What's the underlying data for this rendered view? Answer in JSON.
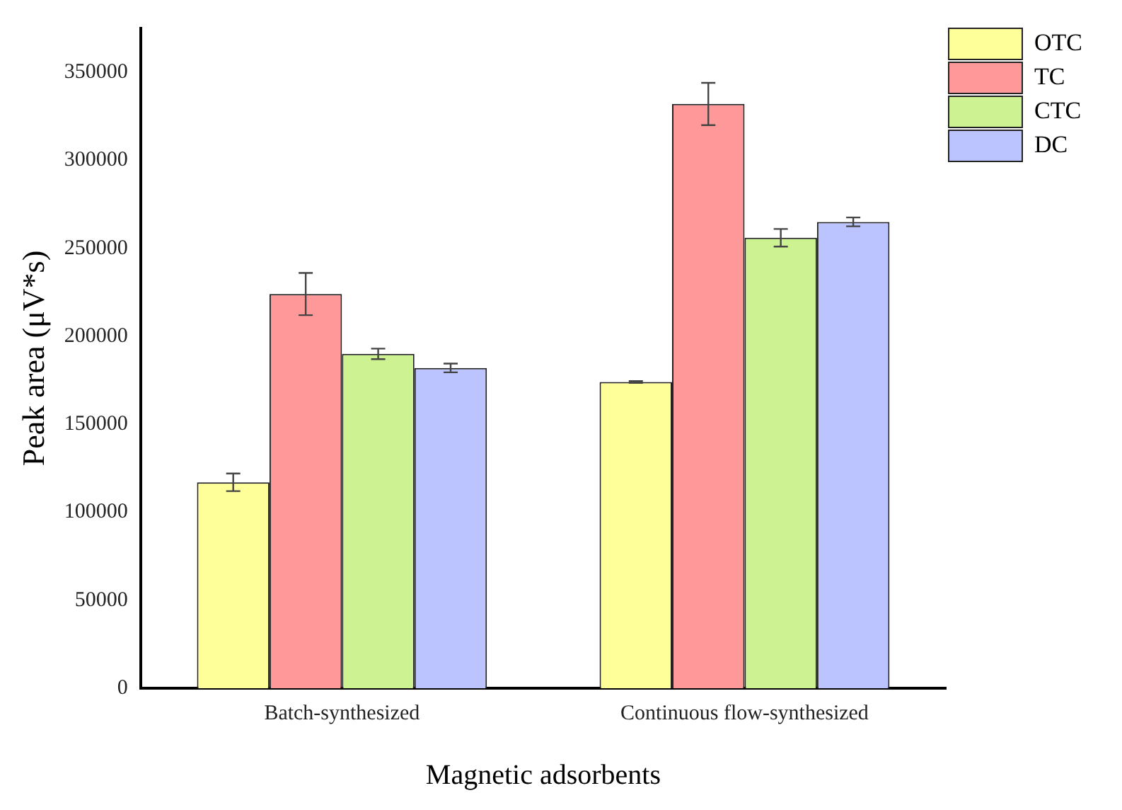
{
  "chart_data": {
    "type": "bar",
    "xlabel": "Magnetic adsorbents",
    "ylabel": "Peak area (μV*s)",
    "categories": [
      "Batch-synthesized",
      "Continuous flow-synthesized"
    ],
    "series": [
      {
        "name": "OTC",
        "color": "#ffff99",
        "values": [
          117000,
          174000
        ],
        "errors": [
          5000,
          500
        ]
      },
      {
        "name": "TC",
        "color": "#ff9999",
        "values": [
          224000,
          332000
        ],
        "errors": [
          12000,
          12000
        ]
      },
      {
        "name": "CTC",
        "color": "#ccf291",
        "values": [
          190000,
          256000
        ],
        "errors": [
          3000,
          5000
        ]
      },
      {
        "name": "DC",
        "color": "#bbc4ff",
        "values": [
          182000,
          265000
        ],
        "errors": [
          2500,
          2500
        ]
      }
    ],
    "ylim": [
      0,
      375000
    ],
    "yticks": [
      0,
      50000,
      100000,
      150000,
      200000,
      250000,
      300000,
      350000
    ],
    "grid": false,
    "legend": "top right"
  }
}
